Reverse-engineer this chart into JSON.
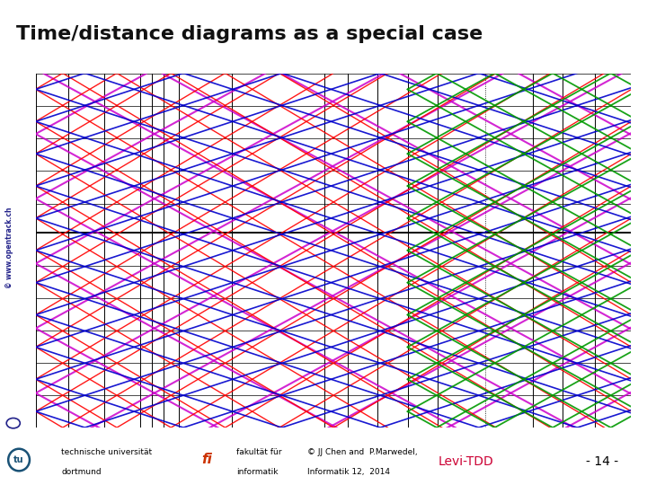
{
  "title": "Time/distance diagrams as a special case",
  "title_fontsize": 16,
  "title_fontweight": "bold",
  "top_bar_color": "#c8d400",
  "footer_bar_color": "#8ab800",
  "bg_color": "#ffffff",
  "footer_left1": "technische universität",
  "footer_left2": "dortmund",
  "footer_mid1": "fakultät für",
  "footer_mid2": "informatik",
  "footer_copy1": "© JJ Chen and  P.Marwedel,",
  "footer_copy2": "Informatik 12,  2014",
  "footer_right": "Levi-TDD",
  "footer_page": "- 14 -",
  "footer_right_color": "#cc0033",
  "watermark": "© www.opentrack.ch",
  "watermark_color": "#22228a",
  "line_separator_color": "#a8c800",
  "tu_color": "#1a5276",
  "fi_color": "#cc3300"
}
